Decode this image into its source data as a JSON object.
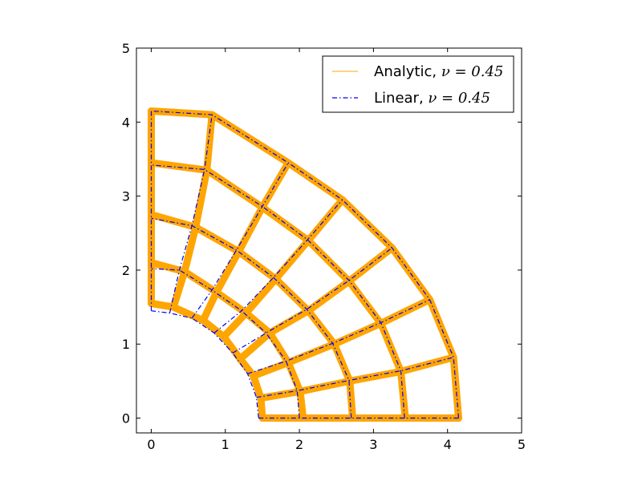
{
  "chart_data": {
    "type": "line",
    "title": "",
    "xlabel": "",
    "ylabel": "",
    "xlim": [
      -0.2,
      5
    ],
    "ylim": [
      -0.2,
      5
    ],
    "xticks": [
      "0",
      "1",
      "2",
      "3",
      "4",
      "5"
    ],
    "yticks": [
      "0",
      "1",
      "2",
      "3",
      "4",
      "5"
    ],
    "grid": false,
    "legend_position": "top-right",
    "series": [
      {
        "name": "Analytic,",
        "name_math": "ν = 0.45",
        "color": "#ffa500",
        "style": "solid-thick",
        "mesh": {
          "radial_lines": [
            [
              [
                1.5,
                0.0
              ],
              [
                2.05,
                0.0
              ],
              [
                2.72,
                0.0
              ],
              [
                3.43,
                0.0
              ],
              [
                4.15,
                0.0
              ]
            ],
            [
              [
                1.48,
                0.27
              ],
              [
                2.01,
                0.36
              ],
              [
                2.68,
                0.5
              ],
              [
                3.37,
                0.63
              ],
              [
                4.08,
                0.82
              ]
            ],
            [
              [
                1.38,
                0.57
              ],
              [
                1.85,
                0.75
              ],
              [
                2.47,
                1.0
              ],
              [
                3.1,
                1.28
              ],
              [
                3.76,
                1.6
              ]
            ],
            [
              [
                1.2,
                0.8
              ],
              [
                1.6,
                1.15
              ],
              [
                2.12,
                1.45
              ],
              [
                2.67,
                1.85
              ],
              [
                3.25,
                2.3
              ]
            ],
            [
              [
                0.98,
                1.1
              ],
              [
                1.28,
                1.42
              ],
              [
                1.68,
                1.88
              ],
              [
                2.12,
                2.4
              ],
              [
                2.58,
                2.95
              ]
            ],
            [
              [
                0.7,
                1.32
              ],
              [
                0.88,
                1.7
              ],
              [
                1.18,
                2.25
              ],
              [
                1.5,
                2.85
              ],
              [
                1.85,
                3.45
              ]
            ],
            [
              [
                0.3,
                1.5
              ],
              [
                0.45,
                1.98
              ],
              [
                0.6,
                2.58
              ],
              [
                0.75,
                3.35
              ],
              [
                0.82,
                4.1
              ]
            ],
            [
              [
                0.0,
                1.55
              ],
              [
                0.0,
                2.1
              ],
              [
                0.0,
                2.75
              ],
              [
                0.0,
                3.45
              ],
              [
                0.0,
                4.15
              ]
            ]
          ],
          "arcs": [
            [
              [
                1.5,
                0.0
              ],
              [
                1.48,
                0.27
              ],
              [
                1.38,
                0.57
              ],
              [
                1.2,
                0.8
              ],
              [
                0.98,
                1.1
              ],
              [
                0.7,
                1.32
              ],
              [
                0.3,
                1.5
              ],
              [
                0.0,
                1.55
              ]
            ],
            [
              [
                2.05,
                0.0
              ],
              [
                2.01,
                0.36
              ],
              [
                1.85,
                0.75
              ],
              [
                1.6,
                1.15
              ],
              [
                1.28,
                1.42
              ],
              [
                0.88,
                1.7
              ],
              [
                0.45,
                1.98
              ],
              [
                0.0,
                2.1
              ]
            ],
            [
              [
                2.72,
                0.0
              ],
              [
                2.68,
                0.5
              ],
              [
                2.47,
                1.0
              ],
              [
                2.12,
                1.45
              ],
              [
                1.68,
                1.88
              ],
              [
                1.18,
                2.25
              ],
              [
                0.6,
                2.58
              ],
              [
                0.0,
                2.75
              ]
            ],
            [
              [
                3.43,
                0.0
              ],
              [
                3.37,
                0.63
              ],
              [
                3.1,
                1.28
              ],
              [
                2.67,
                1.85
              ],
              [
                2.12,
                2.4
              ],
              [
                1.5,
                2.85
              ],
              [
                0.75,
                3.35
              ],
              [
                0.0,
                3.45
              ]
            ],
            [
              [
                4.15,
                0.0
              ],
              [
                4.08,
                0.82
              ],
              [
                3.76,
                1.6
              ],
              [
                3.25,
                2.3
              ],
              [
                2.58,
                2.95
              ],
              [
                1.85,
                3.45
              ],
              [
                0.82,
                4.1
              ],
              [
                0.0,
                4.15
              ]
            ]
          ]
        }
      },
      {
        "name": "Linear,",
        "name_math": "ν = 0.45",
        "color": "#0000ff",
        "style": "dashdot",
        "mesh": {
          "radial_lines": [
            [
              [
                1.45,
                0.0
              ],
              [
                2.0,
                0.0
              ],
              [
                2.7,
                0.0
              ],
              [
                3.42,
                0.0
              ],
              [
                4.15,
                0.0
              ]
            ],
            [
              [
                1.42,
                0.28
              ],
              [
                1.97,
                0.37
              ],
              [
                2.67,
                0.51
              ],
              [
                3.37,
                0.64
              ],
              [
                4.08,
                0.82
              ]
            ],
            [
              [
                1.3,
                0.6
              ],
              [
                1.82,
                0.77
              ],
              [
                2.45,
                1.01
              ],
              [
                3.1,
                1.29
              ],
              [
                3.76,
                1.6
              ]
            ],
            [
              [
                1.1,
                0.88
              ],
              [
                1.55,
                1.15
              ],
              [
                2.1,
                1.47
              ],
              [
                2.67,
                1.86
              ],
              [
                3.25,
                2.3
              ]
            ],
            [
              [
                0.85,
                1.15
              ],
              [
                1.22,
                1.45
              ],
              [
                1.65,
                1.9
              ],
              [
                2.11,
                2.41
              ],
              [
                2.58,
                2.95
              ]
            ],
            [
              [
                0.55,
                1.35
              ],
              [
                0.82,
                1.73
              ],
              [
                1.15,
                2.27
              ],
              [
                1.5,
                2.86
              ],
              [
                1.85,
                3.45
              ]
            ],
            [
              [
                0.25,
                1.42
              ],
              [
                0.38,
                2.0
              ],
              [
                0.55,
                2.6
              ],
              [
                0.72,
                3.36
              ],
              [
                0.82,
                4.1
              ]
            ],
            [
              [
                0.0,
                1.45
              ],
              [
                0.0,
                2.02
              ],
              [
                0.0,
                2.7
              ],
              [
                0.0,
                3.42
              ],
              [
                0.0,
                4.15
              ]
            ]
          ],
          "arcs": [
            [
              [
                1.45,
                0.0
              ],
              [
                1.42,
                0.28
              ],
              [
                1.3,
                0.6
              ],
              [
                1.1,
                0.88
              ],
              [
                0.85,
                1.15
              ],
              [
                0.55,
                1.35
              ],
              [
                0.25,
                1.42
              ],
              [
                0.0,
                1.45
              ]
            ],
            [
              [
                2.0,
                0.0
              ],
              [
                1.97,
                0.37
              ],
              [
                1.82,
                0.77
              ],
              [
                1.55,
                1.15
              ],
              [
                1.22,
                1.45
              ],
              [
                0.82,
                1.73
              ],
              [
                0.38,
                2.0
              ],
              [
                0.0,
                2.02
              ]
            ],
            [
              [
                2.7,
                0.0
              ],
              [
                2.67,
                0.51
              ],
              [
                2.45,
                1.01
              ],
              [
                2.1,
                1.47
              ],
              [
                1.65,
                1.9
              ],
              [
                1.15,
                2.27
              ],
              [
                0.55,
                2.6
              ],
              [
                0.0,
                2.7
              ]
            ],
            [
              [
                3.42,
                0.0
              ],
              [
                3.37,
                0.64
              ],
              [
                3.1,
                1.29
              ],
              [
                2.67,
                1.86
              ],
              [
                2.11,
                2.41
              ],
              [
                1.5,
                2.86
              ],
              [
                0.72,
                3.36
              ],
              [
                0.0,
                3.42
              ]
            ],
            [
              [
                4.15,
                0.0
              ],
              [
                4.08,
                0.82
              ],
              [
                3.76,
                1.6
              ],
              [
                3.25,
                2.3
              ],
              [
                2.58,
                2.95
              ],
              [
                1.85,
                3.45
              ],
              [
                0.82,
                4.1
              ],
              [
                0.0,
                4.15
              ]
            ]
          ]
        }
      }
    ]
  }
}
